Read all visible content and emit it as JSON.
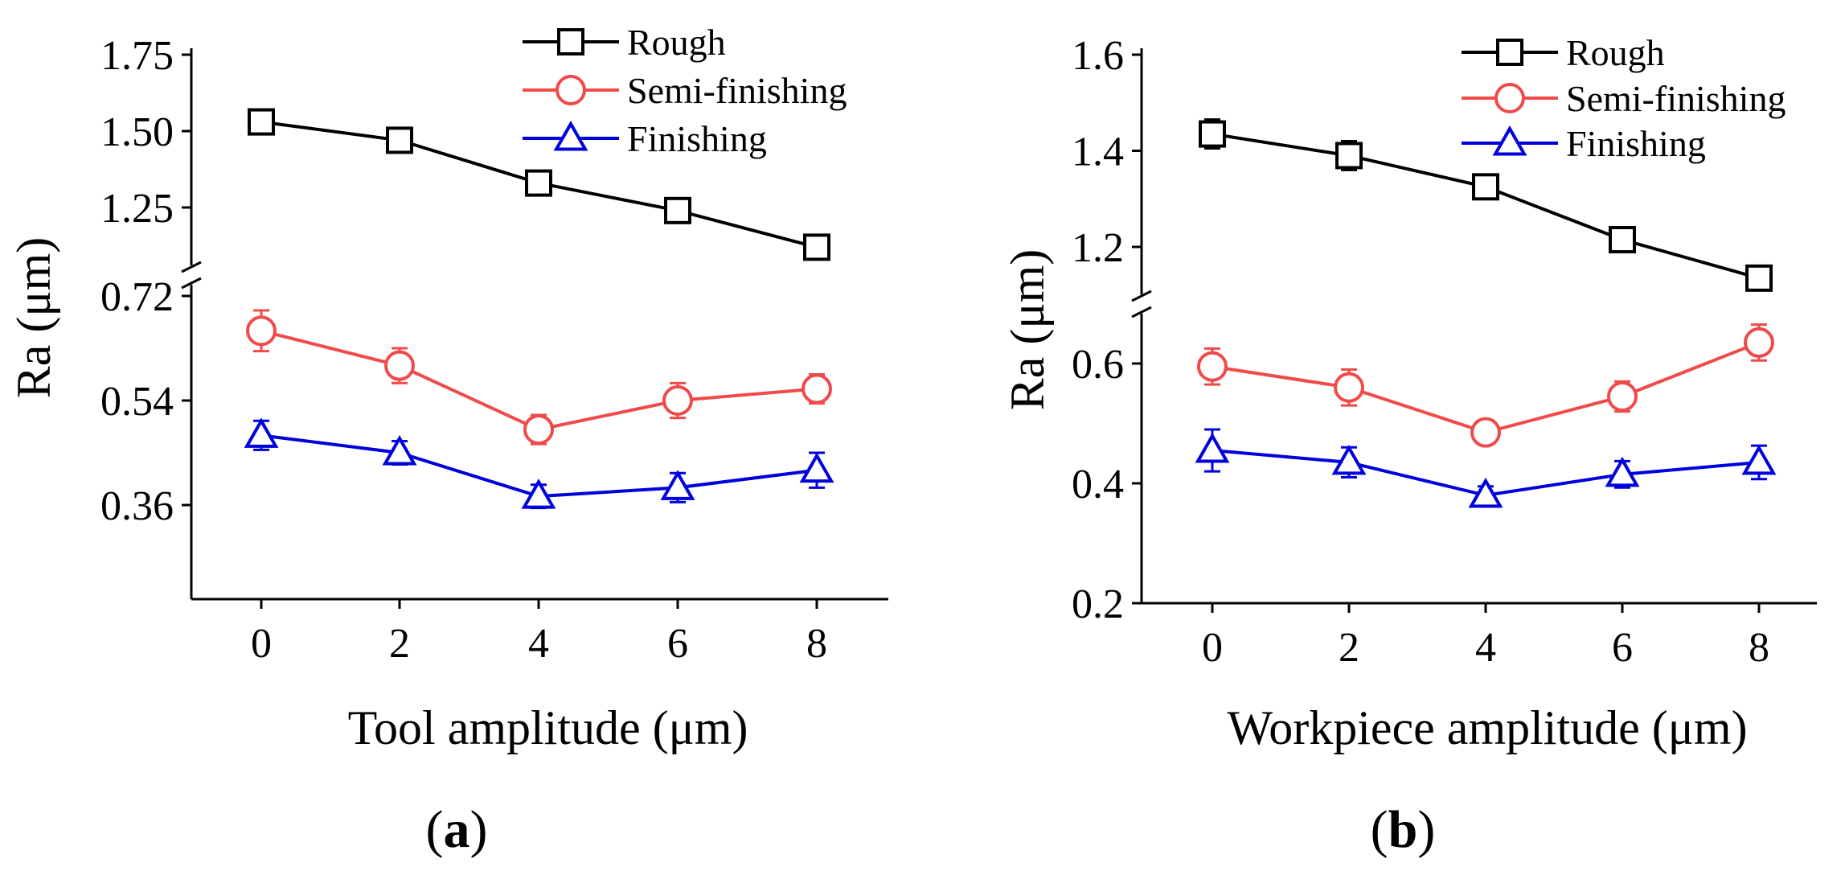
{
  "chart_data": [
    {
      "type": "line",
      "panel_label": "a",
      "xlabel": "Tool amplitude (μm)",
      "ylabel": "Ra (μm)",
      "x": [
        0,
        2,
        4,
        6,
        8
      ],
      "x_tick_labels": [
        "0",
        "2",
        "4",
        "6",
        "8"
      ],
      "xlim": [
        -1,
        9
      ],
      "broken_y_axis": true,
      "y_upper": {
        "range": [
          1.12,
          1.78
        ],
        "ticks": [
          1.25,
          1.5,
          1.75
        ],
        "tick_labels": [
          "1.25",
          "1.50",
          "1.75"
        ]
      },
      "y_lower": {
        "range": [
          0.2,
          0.72
        ],
        "ticks": [
          0.36,
          0.54,
          0.72
        ],
        "tick_labels": [
          "0.36",
          "0.54",
          "0.72"
        ]
      },
      "legend_position": "top-center",
      "series": [
        {
          "name": "Rough",
          "marker": "square",
          "color": "#000000",
          "axis": "upper",
          "values": [
            1.53,
            1.47,
            1.33,
            1.24,
            1.12
          ],
          "errors": [
            0.03,
            0.025,
            0.03,
            0.04,
            0.025
          ]
        },
        {
          "name": "Semi-finishing",
          "marker": "circle",
          "color": "#f04a4a",
          "axis": "lower",
          "values": [
            0.66,
            0.6,
            0.49,
            0.54,
            0.56
          ],
          "errors": [
            0.035,
            0.03,
            0.025,
            0.03,
            0.025
          ]
        },
        {
          "name": "Finishing",
          "marker": "triangle",
          "color": "#0000dd",
          "axis": "lower",
          "values": [
            0.48,
            0.45,
            0.375,
            0.39,
            0.42
          ],
          "errors": [
            0.025,
            0.02,
            0.02,
            0.025,
            0.03
          ]
        }
      ]
    },
    {
      "type": "line",
      "panel_label": "b",
      "xlabel": "Workpiece amplitude (μm)",
      "ylabel": "Ra (μm)",
      "x": [
        0,
        2,
        4,
        6,
        8
      ],
      "x_tick_labels": [
        "0",
        "2",
        "4",
        "6",
        "8"
      ],
      "xlim": [
        -1,
        9
      ],
      "broken_y_axis": true,
      "y_upper": {
        "range": [
          1.1,
          1.6
        ],
        "ticks": [
          1.2,
          1.4,
          1.6
        ],
        "tick_labels": [
          "1.2",
          "1.4",
          "1.6"
        ]
      },
      "y_lower": {
        "range": [
          0.2,
          0.7
        ],
        "ticks": [
          0.2,
          0.4,
          0.6
        ],
        "tick_labels": [
          "0.2",
          "0.4",
          "0.6"
        ]
      },
      "legend_position": "top-center",
      "series": [
        {
          "name": "Rough",
          "marker": "square",
          "color": "#000000",
          "axis": "upper",
          "values": [
            1.435,
            1.39,
            1.325,
            1.215,
            1.135
          ],
          "errors": [
            0.03,
            0.03,
            0.02,
            0.025,
            0.025
          ]
        },
        {
          "name": "Semi-finishing",
          "marker": "circle",
          "color": "#f04a4a",
          "axis": "lower",
          "values": [
            0.595,
            0.56,
            0.485,
            0.545,
            0.635
          ],
          "errors": [
            0.03,
            0.03,
            0.02,
            0.025,
            0.03
          ]
        },
        {
          "name": "Finishing",
          "marker": "triangle",
          "color": "#0000dd",
          "axis": "lower",
          "values": [
            0.455,
            0.435,
            0.38,
            0.415,
            0.435
          ],
          "errors": [
            0.035,
            0.025,
            0.015,
            0.022,
            0.028
          ]
        }
      ]
    }
  ]
}
